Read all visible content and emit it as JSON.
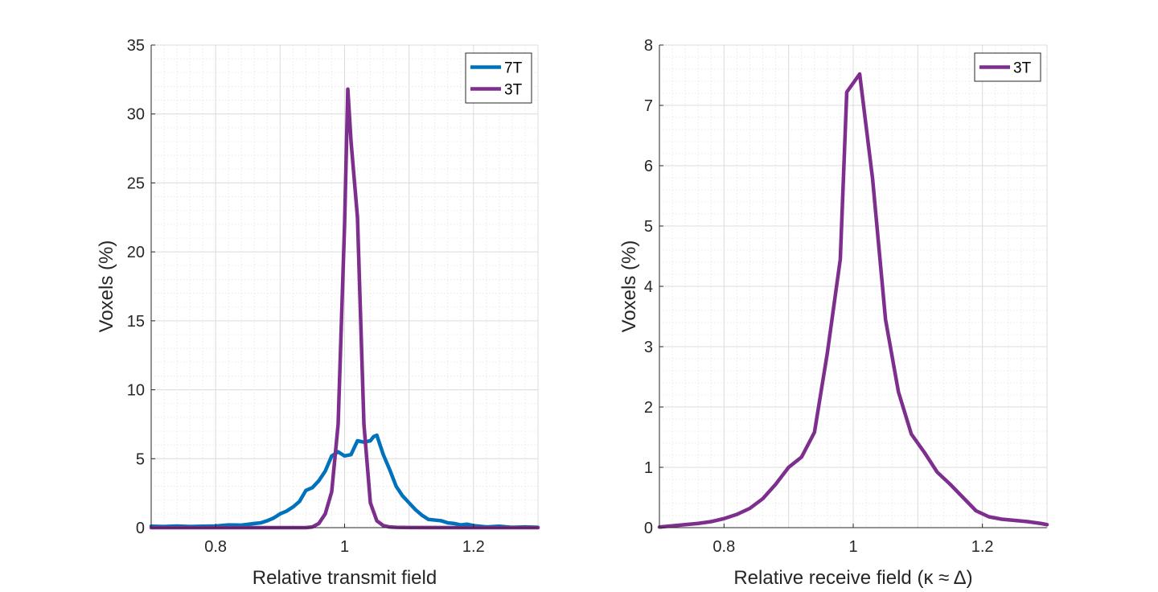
{
  "chart_data": [
    {
      "type": "line",
      "title": "",
      "xlabel": "Relative transmit field",
      "ylabel": "Voxels (%)",
      "xlim": [
        0.7,
        1.3
      ],
      "ylim": [
        0,
        35
      ],
      "xticks": [
        0.8,
        1,
        1.2
      ],
      "xtick_labels": [
        "0.8",
        "1",
        "1.2"
      ],
      "yticks": [
        0,
        5,
        10,
        15,
        20,
        25,
        30,
        35
      ],
      "ytick_labels": [
        "0",
        "5",
        "10",
        "15",
        "20",
        "25",
        "30",
        "35"
      ],
      "grid": true,
      "minor_grid": true,
      "legend": "top-right",
      "series": [
        {
          "name": "7T",
          "color": "#0072BD",
          "x": [
            0.7,
            0.72,
            0.74,
            0.76,
            0.78,
            0.8,
            0.82,
            0.84,
            0.86,
            0.87,
            0.88,
            0.89,
            0.9,
            0.91,
            0.92,
            0.93,
            0.94,
            0.95,
            0.96,
            0.97,
            0.98,
            0.99,
            1.0,
            1.01,
            1.02,
            1.03,
            1.04,
            1.045,
            1.05,
            1.06,
            1.07,
            1.08,
            1.09,
            1.1,
            1.11,
            1.12,
            1.13,
            1.14,
            1.15,
            1.16,
            1.17,
            1.18,
            1.19,
            1.2,
            1.22,
            1.24,
            1.26,
            1.28,
            1.3
          ],
          "y": [
            0.1,
            0.08,
            0.12,
            0.08,
            0.1,
            0.12,
            0.2,
            0.18,
            0.3,
            0.35,
            0.5,
            0.7,
            1.0,
            1.2,
            1.5,
            1.9,
            2.7,
            2.9,
            3.4,
            4.1,
            5.2,
            5.5,
            5.2,
            5.3,
            6.3,
            6.2,
            6.3,
            6.6,
            6.7,
            5.3,
            4.2,
            3.0,
            2.3,
            1.8,
            1.3,
            0.9,
            0.6,
            0.55,
            0.5,
            0.35,
            0.3,
            0.2,
            0.25,
            0.15,
            0.05,
            0.1,
            0.02,
            0.05,
            0.02
          ]
        },
        {
          "name": "3T",
          "color": "#7E2F8E",
          "x": [
            0.7,
            0.8,
            0.9,
            0.94,
            0.95,
            0.96,
            0.97,
            0.98,
            0.99,
            1.0,
            1.005,
            1.01,
            1.02,
            1.03,
            1.04,
            1.05,
            1.06,
            1.07,
            1.08,
            1.1,
            1.2,
            1.3
          ],
          "y": [
            0,
            0,
            0,
            0,
            0.05,
            0.3,
            1.0,
            2.6,
            7.5,
            22.0,
            31.8,
            28.0,
            22.5,
            7.5,
            1.8,
            0.5,
            0.15,
            0.05,
            0.02,
            0.01,
            0,
            0
          ]
        }
      ]
    },
    {
      "type": "line",
      "title": "",
      "xlabel": "Relative receive field (κ ≈ Δ)",
      "ylabel": "Voxels (%)",
      "xlim": [
        0.7,
        1.3
      ],
      "ylim": [
        0,
        8
      ],
      "xticks": [
        0.8,
        1,
        1.2
      ],
      "xtick_labels": [
        "0.8",
        "1",
        "1.2"
      ],
      "yticks": [
        0,
        1,
        2,
        3,
        4,
        5,
        6,
        7,
        8
      ],
      "ytick_labels": [
        "0",
        "1",
        "2",
        "3",
        "4",
        "5",
        "6",
        "7",
        "8"
      ],
      "grid": true,
      "minor_grid": true,
      "legend": "top-right",
      "series": [
        {
          "name": "3T",
          "color": "#7E2F8E",
          "x": [
            0.7,
            0.72,
            0.74,
            0.76,
            0.78,
            0.8,
            0.82,
            0.84,
            0.86,
            0.88,
            0.9,
            0.92,
            0.94,
            0.96,
            0.98,
            0.99,
            1.01,
            1.03,
            1.05,
            1.07,
            1.09,
            1.11,
            1.13,
            1.15,
            1.17,
            1.19,
            1.21,
            1.23,
            1.25,
            1.27,
            1.29,
            1.3
          ],
          "y": [
            0.01,
            0.03,
            0.05,
            0.07,
            0.1,
            0.15,
            0.22,
            0.32,
            0.48,
            0.72,
            1.0,
            1.17,
            1.58,
            2.9,
            4.45,
            7.22,
            7.52,
            5.78,
            3.45,
            2.25,
            1.55,
            1.25,
            0.92,
            0.72,
            0.5,
            0.28,
            0.18,
            0.14,
            0.12,
            0.1,
            0.07,
            0.05
          ]
        }
      ]
    }
  ]
}
